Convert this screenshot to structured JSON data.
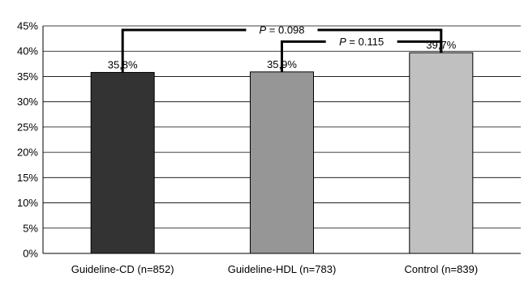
{
  "chart_data": {
    "type": "bar",
    "title": "",
    "xlabel": "",
    "ylabel": "",
    "ylim": [
      0,
      45
    ],
    "ytick_step": 5,
    "ytick_labels": [
      "0%",
      "5%",
      "10%",
      "15%",
      "20%",
      "25%",
      "30%",
      "35%",
      "40%",
      "45%"
    ],
    "grid": true,
    "legend": "none",
    "categories": [
      "Guideline-CD (n=852)",
      "Guideline-HDL (n=783)",
      "Control (n=839)"
    ],
    "values": [
      35.8,
      35.9,
      39.7
    ],
    "data_labels": [
      "35,8%",
      "35,9%",
      "39,7%"
    ],
    "bar_colors": [
      "#333333",
      "#969696",
      "#c0c0c0"
    ],
    "comparisons": [
      {
        "from": 0,
        "to": 2,
        "p_italic": "P",
        "p_rest": " = 0.098"
      },
      {
        "from": 1,
        "to": 2,
        "p_italic": "P",
        "p_rest": " = 0.115"
      }
    ]
  }
}
